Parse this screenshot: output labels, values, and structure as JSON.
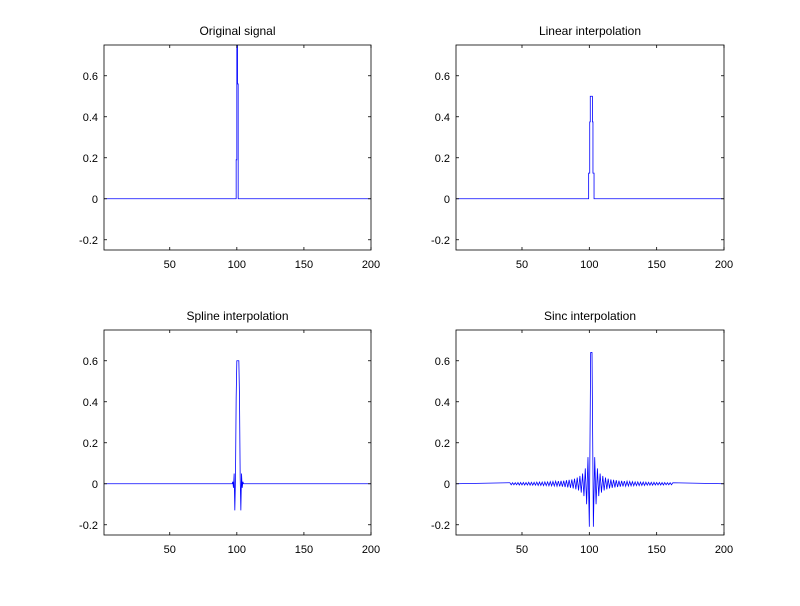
{
  "chart_data": [
    {
      "type": "line",
      "title": "Original signal",
      "xlim": [
        1,
        200
      ],
      "ylim": [
        -0.25,
        0.75
      ],
      "xticks": [
        50,
        100,
        150,
        200
      ],
      "yticks": [
        -0.2,
        0,
        0.2,
        0.4,
        0.6
      ],
      "ytick_labels": [
        "-0.2",
        "0",
        "0.2",
        "0.4",
        "0.6"
      ],
      "xtick_labels": [
        "50",
        "100",
        "150",
        "200"
      ],
      "color": "#0000ff",
      "series": [
        {
          "name": "signal",
          "points": [
            [
              1,
              0
            ],
            [
              99.5,
              0
            ],
            [
              99.5,
              0.19
            ],
            [
              100,
              0.19
            ],
            [
              100,
              1
            ],
            [
              100.5,
              1
            ],
            [
              100.5,
              0.56
            ],
            [
              101,
              0.56
            ],
            [
              101,
              0
            ],
            [
              200,
              0
            ]
          ]
        }
      ]
    },
    {
      "type": "line",
      "title": "Linear interpolation",
      "xlim": [
        1,
        200
      ],
      "ylim": [
        -0.25,
        0.75
      ],
      "xticks": [
        50,
        100,
        150,
        200
      ],
      "yticks": [
        -0.2,
        0,
        0.2,
        0.4,
        0.6
      ],
      "ytick_labels": [
        "-0.2",
        "0",
        "0.2",
        "0.4",
        "0.6"
      ],
      "xtick_labels": [
        "50",
        "100",
        "150",
        "200"
      ],
      "color": "#0000ff",
      "series": [
        {
          "name": "linear",
          "points": [
            [
              1,
              0
            ],
            [
              99.5,
              0
            ],
            [
              99.5,
              0.125
            ],
            [
              100.3,
              0.125
            ],
            [
              100.3,
              0.375
            ],
            [
              100.7,
              0.375
            ],
            [
              100.7,
              0.5
            ],
            [
              102.3,
              0.5
            ],
            [
              102.3,
              0.375
            ],
            [
              102.7,
              0.375
            ],
            [
              102.7,
              0.125
            ],
            [
              103.5,
              0.125
            ],
            [
              103.5,
              0
            ],
            [
              200,
              0
            ]
          ]
        }
      ]
    },
    {
      "type": "line",
      "title": "Spline interpolation",
      "xlim": [
        1,
        200
      ],
      "ylim": [
        -0.25,
        0.75
      ],
      "xticks": [
        50,
        100,
        150,
        200
      ],
      "yticks": [
        -0.2,
        0,
        0.2,
        0.4,
        0.6
      ],
      "ytick_labels": [
        "-0.2",
        "0",
        "0.2",
        "0.4",
        "0.6"
      ],
      "xtick_labels": [
        "50",
        "100",
        "150",
        "200"
      ],
      "color": "#0000ff",
      "series": [
        {
          "name": "spline",
          "points": [
            [
              1,
              0
            ],
            [
              96.5,
              0
            ],
            [
              97,
              0.01
            ],
            [
              97.5,
              -0.02
            ],
            [
              98,
              0.05
            ],
            [
              98.5,
              -0.13
            ],
            [
              99,
              0.03
            ],
            [
              99.5,
              0.42
            ],
            [
              100,
              0.6
            ],
            [
              101.5,
              0.6
            ],
            [
              102,
              0.42
            ],
            [
              102.5,
              0.03
            ],
            [
              103,
              -0.13
            ],
            [
              103.5,
              0.05
            ],
            [
              104,
              -0.02
            ],
            [
              104.5,
              0.01
            ],
            [
              105,
              0
            ],
            [
              200,
              0
            ]
          ]
        }
      ]
    },
    {
      "type": "line",
      "title": "Sinc interpolation",
      "xlim": [
        1,
        200
      ],
      "ylim": [
        -0.25,
        0.75
      ],
      "xticks": [
        50,
        100,
        150,
        200
      ],
      "yticks": [
        -0.2,
        0,
        0.2,
        0.4,
        0.6
      ],
      "ytick_labels": [
        "-0.2",
        "0",
        "0.2",
        "0.4",
        "0.6"
      ],
      "xtick_labels": [
        "50",
        "100",
        "150",
        "200"
      ],
      "color": "#0000ff",
      "series": [
        {
          "name": "sinc",
          "x0": 41,
          "dx": 1,
          "pad_zero_at": [
            1,
            200
          ],
          "y": [
            0.005,
            -0.005,
            0.005,
            -0.005,
            0.005,
            -0.005,
            0.006,
            -0.006,
            0.006,
            -0.006,
            0.006,
            -0.006,
            0.006,
            -0.006,
            0.007,
            -0.007,
            0.007,
            -0.007,
            0.007,
            -0.007,
            0.008,
            -0.008,
            0.008,
            -0.008,
            0.008,
            -0.009,
            0.009,
            -0.009,
            0.009,
            -0.01,
            0.01,
            -0.01,
            0.011,
            -0.011,
            0.012,
            -0.012,
            0.013,
            -0.013,
            0.014,
            -0.014,
            0.015,
            -0.016,
            0.017,
            -0.018,
            0.019,
            -0.02,
            0.021,
            -0.023,
            0.025,
            -0.027,
            0.03,
            -0.033,
            0.038,
            -0.043,
            0.05,
            -0.06,
            0.075,
            -0.1,
            0.13,
            -0.21,
            0.64,
            0.64,
            -0.21,
            0.13,
            -0.1,
            0.075,
            -0.06,
            0.05,
            -0.043,
            0.038,
            -0.033,
            0.03,
            -0.027,
            0.025,
            -0.023,
            0.021,
            -0.02,
            0.019,
            -0.018,
            0.017,
            -0.016,
            0.015,
            -0.014,
            0.014,
            -0.013,
            0.013,
            -0.012,
            0.012,
            -0.011,
            0.011,
            -0.01,
            0.01,
            -0.01,
            0.009,
            -0.009,
            0.009,
            -0.009,
            0.008,
            -0.008,
            0.008,
            -0.008,
            0.008,
            -0.007,
            0.007,
            -0.007,
            0.007,
            -0.007,
            0.007,
            -0.006,
            0.006,
            -0.006,
            0.006,
            -0.006,
            0.006,
            -0.006,
            0.006,
            -0.005,
            0.005,
            -0.005,
            0.005,
            -0.005,
            0.005
          ]
        }
      ]
    }
  ]
}
